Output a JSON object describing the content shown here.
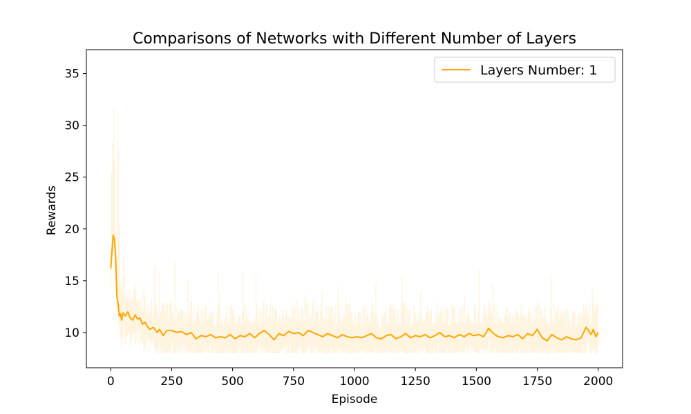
{
  "chart_data": {
    "type": "line",
    "title": "Comparisons of Networks with Different Number of Layers",
    "xlabel": "Episode",
    "ylabel": "Rewards",
    "xlim": [
      -100,
      2100
    ],
    "ylim": [
      6.6,
      37.3
    ],
    "xticks": [
      0,
      250,
      500,
      750,
      1000,
      1250,
      1500,
      1750,
      2000
    ],
    "yticks": [
      10,
      15,
      20,
      25,
      30,
      35
    ],
    "grid": false,
    "legend_position": "top-right",
    "colors": {
      "series": "#ffa500",
      "raw": "#ffa500",
      "raw_opacity": 0.12
    },
    "series": [
      {
        "name": "Layers Number: 1",
        "x": [
          0,
          5,
          10,
          15,
          20,
          25,
          30,
          35,
          40,
          45,
          50,
          60,
          70,
          80,
          90,
          100,
          110,
          120,
          130,
          140,
          150,
          160,
          175,
          190,
          200,
          215,
          230,
          250,
          270,
          290,
          310,
          330,
          350,
          370,
          390,
          410,
          430,
          450,
          470,
          490,
          510,
          530,
          550,
          570,
          590,
          610,
          630,
          650,
          670,
          690,
          710,
          730,
          750,
          770,
          790,
          810,
          830,
          850,
          870,
          890,
          910,
          930,
          950,
          970,
          990,
          1010,
          1030,
          1050,
          1070,
          1090,
          1110,
          1130,
          1150,
          1170,
          1190,
          1210,
          1230,
          1250,
          1270,
          1290,
          1310,
          1330,
          1350,
          1370,
          1390,
          1410,
          1430,
          1450,
          1470,
          1490,
          1510,
          1530,
          1550,
          1570,
          1590,
          1610,
          1630,
          1650,
          1670,
          1690,
          1710,
          1730,
          1750,
          1770,
          1790,
          1810,
          1830,
          1850,
          1870,
          1890,
          1910,
          1930,
          1950,
          1960,
          1970,
          1980,
          1990,
          2000
        ],
        "y": [
          16.2,
          17.8,
          19.4,
          19.0,
          17.4,
          13.5,
          12.8,
          11.6,
          11.8,
          11.2,
          11.9,
          11.6,
          12.0,
          11.4,
          11.2,
          11.7,
          11.3,
          11.4,
          10.8,
          11.0,
          10.6,
          10.3,
          10.5,
          10.0,
          10.3,
          9.7,
          10.2,
          10.2,
          10.0,
          10.1,
          9.8,
          10.0,
          9.4,
          9.7,
          9.6,
          9.8,
          9.5,
          9.6,
          9.5,
          9.8,
          9.4,
          9.7,
          9.6,
          9.9,
          9.5,
          9.9,
          10.2,
          9.8,
          9.3,
          9.9,
          9.7,
          10.1,
          9.9,
          10.0,
          9.7,
          10.2,
          10.0,
          9.8,
          9.6,
          9.9,
          9.7,
          9.5,
          9.8,
          9.6,
          9.5,
          9.6,
          9.5,
          9.7,
          9.9,
          9.5,
          9.4,
          9.7,
          9.8,
          9.4,
          9.6,
          9.9,
          9.5,
          9.7,
          9.6,
          9.8,
          9.5,
          9.7,
          10.0,
          9.6,
          9.7,
          9.5,
          9.8,
          9.6,
          9.9,
          9.7,
          9.8,
          9.6,
          10.4,
          9.9,
          9.6,
          9.5,
          9.7,
          9.6,
          9.8,
          9.4,
          9.9,
          9.7,
          10.3,
          9.5,
          9.2,
          9.8,
          9.5,
          9.3,
          9.6,
          9.4,
          9.3,
          9.5,
          10.5,
          10.2,
          9.8,
          10.3,
          9.6,
          10.0
        ]
      }
    ]
  }
}
